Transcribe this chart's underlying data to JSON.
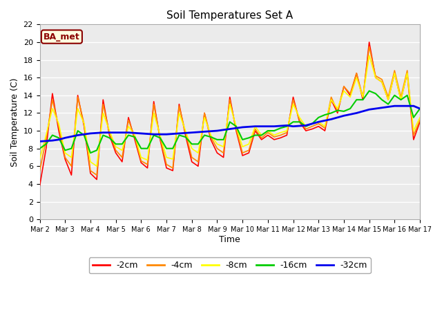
{
  "title": "Soil Temperatures Set A",
  "xlabel": "Time",
  "ylabel": "Soil Temperature (C)",
  "ylim": [
    0,
    22
  ],
  "yticks": [
    0,
    2,
    4,
    6,
    8,
    10,
    12,
    14,
    16,
    18,
    20,
    22
  ],
  "annotation": "BA_met",
  "annotation_color": "#8B0000",
  "annotation_bg": "#FFFFE0",
  "annotation_border": "#8B0000",
  "fig_facecolor": "#FFFFFF",
  "plot_facecolor": "#EBEBEB",
  "series_colors": {
    "-2cm": "#FF0000",
    "-4cm": "#FF8800",
    "-8cm": "#FFFF00",
    "-16cm": "#00CC00",
    "-32cm": "#0000EE"
  },
  "series_linewidths": {
    "-2cm": 1.2,
    "-4cm": 1.2,
    "-8cm": 1.2,
    "-16cm": 1.5,
    "-32cm": 2.0
  },
  "x": [
    0,
    0.25,
    0.5,
    0.75,
    1,
    1.25,
    1.5,
    1.75,
    2,
    2.25,
    2.5,
    2.75,
    3,
    3.25,
    3.5,
    3.75,
    4,
    4.25,
    4.5,
    4.75,
    5,
    5.25,
    5.5,
    5.75,
    6,
    6.25,
    6.5,
    6.75,
    7,
    7.25,
    7.5,
    7.75,
    8,
    8.25,
    8.5,
    8.75,
    9,
    9.25,
    9.5,
    9.75,
    10,
    10.25,
    10.5,
    10.75,
    11,
    11.25,
    11.5,
    11.75,
    12,
    12.25,
    12.5,
    12.75,
    13,
    13.25,
    13.5,
    13.75,
    14,
    14.25,
    14.5,
    14.75,
    15
  ],
  "y_2cm": [
    3.8,
    8.0,
    14.2,
    10.0,
    6.8,
    5.0,
    14.0,
    10.5,
    5.2,
    4.5,
    13.5,
    9.5,
    7.5,
    6.5,
    11.5,
    9.0,
    6.4,
    5.8,
    13.3,
    9.0,
    5.8,
    5.5,
    13.0,
    9.5,
    6.5,
    6.0,
    12.0,
    9.0,
    7.5,
    7.0,
    13.8,
    10.0,
    7.2,
    7.5,
    10.0,
    9.0,
    9.5,
    9.0,
    9.2,
    9.5,
    13.8,
    11.0,
    10.0,
    10.2,
    10.5,
    10.0,
    13.5,
    12.0,
    15.0,
    14.0,
    16.5,
    13.5,
    20.0,
    16.0,
    15.5,
    13.5,
    16.5,
    13.5,
    16.5,
    9.0,
    11.0
  ],
  "y_4cm": [
    5.5,
    9.0,
    13.5,
    10.5,
    7.0,
    6.0,
    13.8,
    10.8,
    5.5,
    5.0,
    13.0,
    9.8,
    7.8,
    7.0,
    11.2,
    9.3,
    6.6,
    6.2,
    13.0,
    9.2,
    6.2,
    5.8,
    12.8,
    9.8,
    7.0,
    6.5,
    12.0,
    9.3,
    8.0,
    7.5,
    13.5,
    10.2,
    7.5,
    7.8,
    10.2,
    9.2,
    9.8,
    9.3,
    9.5,
    9.8,
    13.5,
    11.2,
    10.2,
    10.5,
    10.8,
    10.3,
    13.8,
    12.2,
    15.0,
    14.2,
    16.5,
    13.8,
    19.5,
    16.2,
    15.8,
    13.8,
    16.8,
    13.8,
    16.8,
    9.5,
    11.2
  ],
  "y_8cm": [
    6.8,
    9.5,
    12.5,
    10.8,
    7.5,
    7.0,
    12.5,
    10.8,
    6.5,
    6.0,
    12.0,
    10.0,
    8.2,
    7.8,
    10.5,
    9.5,
    7.0,
    6.7,
    12.0,
    9.5,
    7.0,
    6.8,
    12.0,
    10.0,
    8.0,
    7.5,
    11.5,
    9.5,
    8.5,
    8.2,
    13.0,
    10.5,
    8.2,
    8.5,
    10.5,
    9.5,
    10.0,
    9.5,
    9.8,
    10.0,
    13.0,
    11.5,
    10.5,
    10.8,
    11.0,
    10.5,
    13.5,
    12.5,
    14.5,
    13.8,
    16.0,
    13.8,
    18.5,
    16.0,
    15.5,
    13.5,
    16.5,
    13.5,
    16.5,
    10.0,
    11.5
  ],
  "y_16cm": [
    8.0,
    8.5,
    9.5,
    9.2,
    7.8,
    8.0,
    10.0,
    9.5,
    7.5,
    7.8,
    9.5,
    9.2,
    8.5,
    8.5,
    9.5,
    9.3,
    8.0,
    8.0,
    9.5,
    9.2,
    8.0,
    8.0,
    9.5,
    9.3,
    8.5,
    8.5,
    9.5,
    9.3,
    9.0,
    9.0,
    11.0,
    10.5,
    9.0,
    9.2,
    9.5,
    9.5,
    10.0,
    10.0,
    10.3,
    10.5,
    11.0,
    11.0,
    10.5,
    10.8,
    11.5,
    11.8,
    12.0,
    12.3,
    12.2,
    12.5,
    13.5,
    13.5,
    14.5,
    14.2,
    13.5,
    13.0,
    14.0,
    13.5,
    14.0,
    11.5,
    12.5
  ],
  "y_32cm": [
    8.8,
    8.85,
    8.9,
    9.0,
    9.2,
    9.35,
    9.5,
    9.6,
    9.7,
    9.75,
    9.8,
    9.8,
    9.8,
    9.8,
    9.8,
    9.75,
    9.7,
    9.65,
    9.6,
    9.6,
    9.6,
    9.65,
    9.7,
    9.75,
    9.8,
    9.85,
    9.9,
    9.95,
    10.0,
    10.1,
    10.2,
    10.3,
    10.4,
    10.45,
    10.5,
    10.5,
    10.5,
    10.5,
    10.55,
    10.6,
    10.5,
    10.55,
    10.6,
    10.8,
    11.0,
    11.15,
    11.3,
    11.5,
    11.7,
    11.85,
    12.0,
    12.2,
    12.4,
    12.5,
    12.6,
    12.7,
    12.8,
    12.8,
    12.8,
    12.8,
    12.5
  ],
  "xtick_positions": [
    0,
    1,
    2,
    3,
    4,
    5,
    6,
    7,
    8,
    9,
    10,
    11,
    12,
    13,
    14,
    15
  ],
  "xtick_labels": [
    "Mar 2",
    "Mar 3",
    "Mar 4",
    "Mar 5",
    "Mar 6",
    "Mar 7",
    "Mar 8",
    "Mar 9",
    "Mar 10",
    "Mar 11",
    "Mar 12",
    "Mar 13",
    "Mar 14",
    "Mar 15",
    "Mar 16",
    "Mar 17"
  ]
}
